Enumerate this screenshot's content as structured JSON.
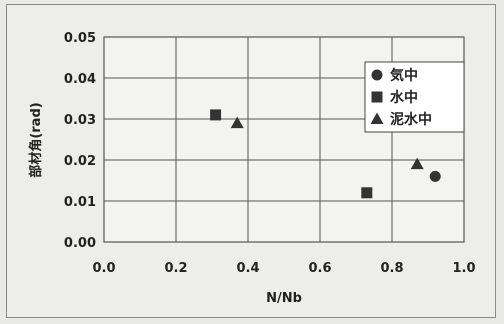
{
  "chart_data": {
    "type": "scatter",
    "xlabel": "N/Nb",
    "ylabel": "部材角(rad)",
    "xlim": [
      0.0,
      1.0
    ],
    "ylim": [
      0.0,
      0.05
    ],
    "x_ticks": [
      "0.0",
      "0.2",
      "0.4",
      "0.6",
      "0.8",
      "1.0"
    ],
    "y_ticks": [
      "0.00",
      "0.01",
      "0.02",
      "0.03",
      "0.04",
      "0.05"
    ],
    "grid": true,
    "legend_position": "right",
    "series": [
      {
        "name": "気中",
        "marker": "circle",
        "points": [
          {
            "x": 0.92,
            "y": 0.016
          }
        ]
      },
      {
        "name": "水中",
        "marker": "square",
        "points": [
          {
            "x": 0.31,
            "y": 0.031
          },
          {
            "x": 0.73,
            "y": 0.012
          }
        ]
      },
      {
        "name": "泥水中",
        "marker": "triangle",
        "points": [
          {
            "x": 0.37,
            "y": 0.029
          },
          {
            "x": 0.87,
            "y": 0.019
          }
        ]
      }
    ]
  }
}
